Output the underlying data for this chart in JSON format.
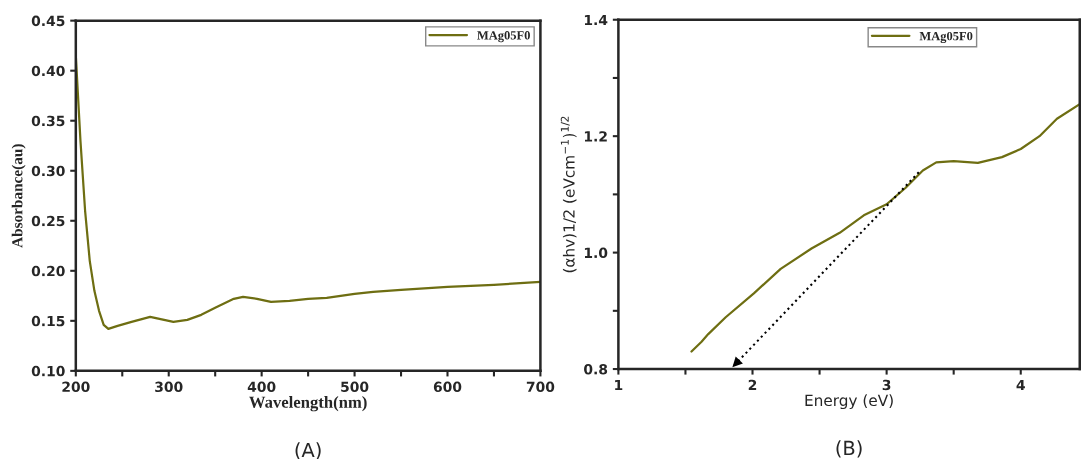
{
  "chart_data": [
    {
      "type": "line",
      "title": "(A)",
      "xlabel": "Wavelength(nm)",
      "ylabel": "Absorbance(au)",
      "xlim": [
        200,
        700
      ],
      "xticks": [
        200,
        {
          "value": 250,
          "label": null
        },
        300,
        {
          "value": 350,
          "label": null
        },
        400,
        {
          "value": 450,
          "label": null
        },
        500,
        {
          "value": 550,
          "label": null
        },
        600,
        {
          "value": 650,
          "label": null
        },
        700
      ],
      "ylim": [
        0.1,
        0.45
      ],
      "yticks": [
        {
          "value": 0.1,
          "label": "0.10"
        },
        0.15,
        {
          "value": 0.2,
          "label": "0.20"
        },
        0.25,
        {
          "value": 0.3,
          "label": "0.30"
        },
        0.35,
        {
          "value": 0.4,
          "label": "0.40"
        },
        0.45
      ],
      "legend": "top right",
      "grid": false,
      "series": [
        {
          "name": "MAg05F0",
          "color": "#6e6e12",
          "x": [
            200,
            205,
            210,
            215,
            220,
            225,
            230,
            235,
            245,
            260,
            280,
            290,
            305,
            320,
            335,
            350,
            370,
            380,
            395,
            410,
            430,
            450,
            470,
            500,
            520,
            550,
            600,
            650,
            700
          ],
          "values": [
            0.415,
            0.33,
            0.26,
            0.21,
            0.18,
            0.16,
            0.146,
            0.142,
            0.145,
            0.149,
            0.154,
            0.152,
            0.149,
            0.151,
            0.156,
            0.163,
            0.172,
            0.174,
            0.172,
            0.169,
            0.17,
            0.172,
            0.173,
            0.177,
            0.179,
            0.181,
            0.184,
            0.186,
            0.189
          ]
        }
      ]
    },
    {
      "type": "line",
      "title": "(B)",
      "xlabel": "Energy (eV)",
      "ylabel": "(αhv)1/2 (eVcm$^{−1}$)$^{1/2}$",
      "xlim": [
        1,
        4.44
      ],
      "xticks": [
        1,
        {
          "value": 1.5,
          "label": null
        },
        2,
        {
          "value": 2.5,
          "label": null
        },
        3,
        {
          "value": 3.5,
          "label": null
        },
        4
      ],
      "ylim": [
        0.8,
        1.4
      ],
      "yticks": [
        0.8,
        {
          "value": 0.9,
          "label": null
        },
        {
          "value": 1,
          "label": "1.0"
        },
        {
          "value": 1.1,
          "label": null
        },
        1.2,
        {
          "value": 1.3,
          "label": null
        },
        1.4
      ],
      "legend": "top right",
      "grid": false,
      "series": [
        {
          "name": "MAg05F0",
          "color": "#6e6e12",
          "x": [
            1.545,
            1.62,
            1.67,
            1.8,
            2.01,
            2.21,
            2.44,
            2.65,
            2.83,
            3.0,
            3.14,
            3.27,
            3.37,
            3.5,
            3.68,
            3.86,
            4.0,
            4.14,
            4.27,
            4.44
          ],
          "values": [
            0.83,
            0.847,
            0.86,
            0.889,
            0.93,
            0.972,
            1.007,
            1.034,
            1.064,
            1.083,
            1.111,
            1.141,
            1.155,
            1.157,
            1.154,
            1.164,
            1.178,
            1.2,
            1.23,
            1.255
          ]
        },
        {
          "type": "line",
          "color": "#000000",
          "line_style": "dotted",
          "x": [
            3.24,
            1.85
          ],
          "values": [
            1.138,
            0.803
          ]
        }
      ]
    }
  ]
}
